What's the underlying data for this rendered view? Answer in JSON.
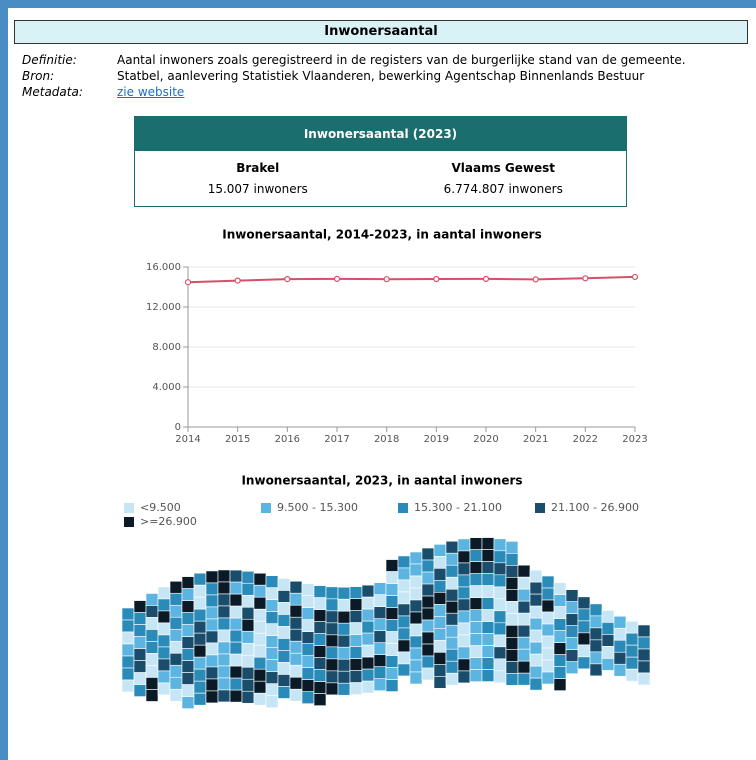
{
  "header": {
    "title": "Inwonersaantal"
  },
  "definitions": [
    {
      "label": "Definitie:",
      "text": "Aantal inwoners zoals geregistreerd in de registers van de burgerlijke stand van de gemeente."
    },
    {
      "label": "Bron:",
      "text": "Statbel, aanlevering Statistiek Vlaanderen, bewerking Agentschap Binnenlands Bestuur"
    },
    {
      "label": "Metadata:",
      "text": "zie website"
    }
  ],
  "summary": {
    "title": "Inwonersaantal (2023)",
    "columns": [
      {
        "name": "Brakel",
        "value": "15.007 inwoners"
      },
      {
        "name": "Vlaams Gewest",
        "value": "6.774.807 inwoners"
      }
    ]
  },
  "chart_data": {
    "type": "line",
    "title": "Inwonersaantal, 2014-2023, in aantal inwoners",
    "x": [
      2014,
      2015,
      2016,
      2017,
      2018,
      2019,
      2020,
      2021,
      2022,
      2023
    ],
    "series": [
      {
        "name": "Brakel",
        "color": "#d4506a",
        "values": [
          14480,
          14640,
          14790,
          14810,
          14780,
          14800,
          14810,
          14760,
          14870,
          15007
        ]
      }
    ],
    "xlim": [
      2014,
      2023
    ],
    "xticks": [
      2014,
      2015,
      2016,
      2017,
      2018,
      2019,
      2020,
      2021,
      2022,
      2023
    ],
    "ylim": [
      0,
      16000
    ],
    "yticks": [
      0,
      {
        "value": 4000,
        "label": "4.000"
      },
      {
        "value": 8000,
        "label": "8.000"
      },
      {
        "value": 12000,
        "label": "12.000"
      },
      {
        "value": 16000,
        "label": "16.000"
      }
    ],
    "grid": true
  },
  "map": {
    "title": "Inwonersaantal, 2023, in aantal inwoners",
    "legend": [
      {
        "label": "<9.500",
        "color": "#c6e6f5"
      },
      {
        "label": "9.500 - 15.300",
        "color": "#5bb5e0"
      },
      {
        "label": "15.300 - 21.100",
        "color": "#2a8ab8"
      },
      {
        "label": "21.100 - 26.900",
        "color": "#1a4d6b"
      },
      {
        "label": ">=26.900",
        "color": "#0a1a26"
      }
    ]
  }
}
